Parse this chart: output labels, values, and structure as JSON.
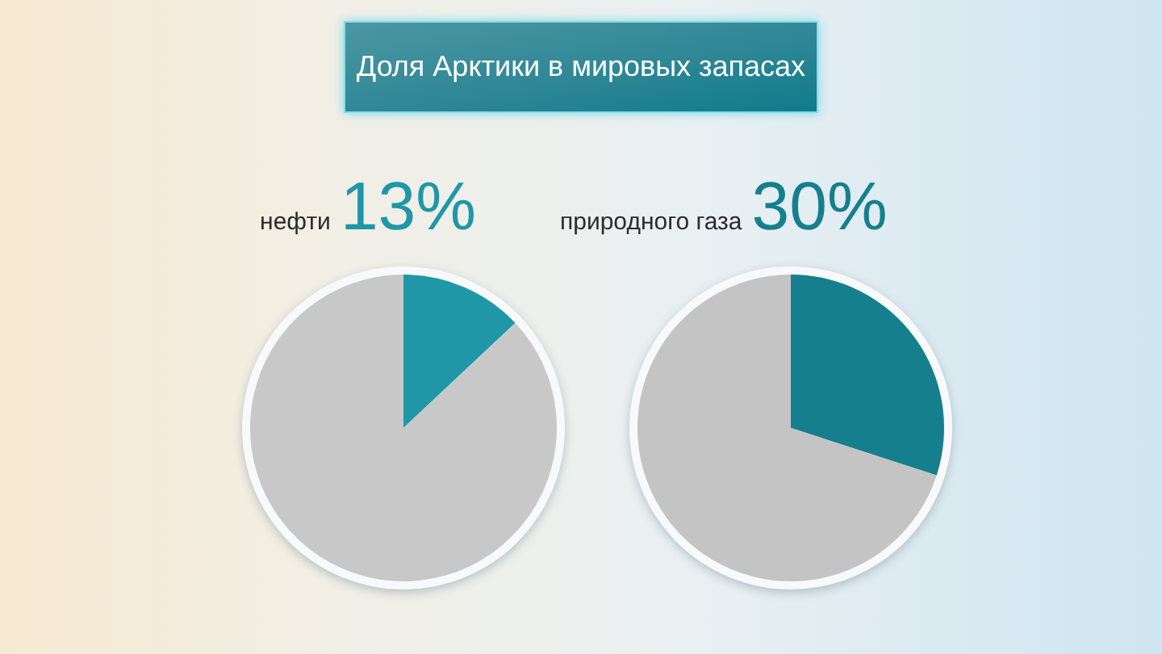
{
  "chart_data": [
    {
      "type": "other",
      "title": "Доля Арктики в мировых запасах"
    },
    {
      "type": "pie",
      "title": "нефти",
      "categories": [
        null,
        null
      ],
      "values": [
        13,
        87
      ],
      "colors": [
        "#1f97a7",
        "#c8c8c8"
      ],
      "value_labels": [
        "13%",
        null
      ]
    },
    {
      "type": "pie",
      "title": "природного газа",
      "categories": [
        null,
        null
      ],
      "values": [
        30,
        70
      ],
      "colors": [
        "#167f8e",
        "#c4c4c4"
      ],
      "value_labels": [
        "30%",
        null
      ]
    }
  ]
}
